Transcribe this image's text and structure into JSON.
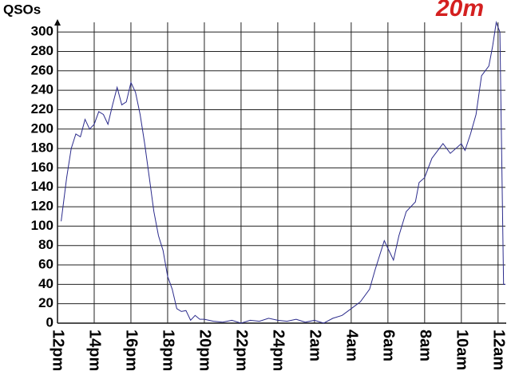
{
  "chart_data": {
    "type": "line",
    "title": "20m",
    "y_label": "QSOs",
    "x": [
      0.2,
      0.5,
      0.75,
      1,
      1.25,
      1.5,
      1.75,
      2,
      2.25,
      2.5,
      2.75,
      3,
      3.25,
      3.5,
      3.75,
      4,
      4.25,
      4.5,
      4.75,
      5,
      5.25,
      5.5,
      5.75,
      6,
      6.25,
      6.5,
      6.75,
      7,
      7.25,
      7.5,
      7.75,
      8,
      8.5,
      9,
      9.5,
      10,
      10.5,
      11,
      11.5,
      12,
      12.5,
      13,
      13.5,
      14,
      14.5,
      15,
      15.5,
      16,
      16.5,
      17,
      17.3,
      17.8,
      18.3,
      18.6,
      19,
      19.5,
      19.7,
      20,
      20.4,
      21,
      21.4,
      22,
      22.2,
      22.5,
      22.8,
      23.1,
      23.5,
      23.7,
      23.9,
      24.1,
      24.3,
      24.4
    ],
    "series": [
      {
        "color": "#2b2b8c",
        "values": [
          105,
          150,
          180,
          195,
          192,
          210,
          200,
          205,
          218,
          215,
          205,
          225,
          243,
          225,
          228,
          248,
          238,
          215,
          185,
          150,
          115,
          90,
          75,
          48,
          35,
          15,
          12,
          13,
          3,
          8,
          4,
          4,
          2,
          1,
          3,
          0,
          3,
          2,
          5,
          3,
          2,
          4,
          1,
          3,
          0,
          5,
          8,
          15,
          22,
          35,
          55,
          85,
          65,
          90,
          115,
          125,
          145,
          150,
          170,
          185,
          175,
          185,
          178,
          195,
          215,
          255,
          265,
          285,
          310,
          300,
          40,
          40
        ]
      }
    ],
    "xlim": [
      0,
      24.4
    ],
    "ylim": [
      0,
      310
    ],
    "xticks": [
      {
        "value": 0,
        "label": "12pm"
      },
      {
        "value": 2,
        "label": "14pm"
      },
      {
        "value": 4,
        "label": "16pm"
      },
      {
        "value": 6,
        "label": "18pm"
      },
      {
        "value": 8,
        "label": "20pm"
      },
      {
        "value": 10,
        "label": "22pm"
      },
      {
        "value": 12,
        "label": "24pm"
      },
      {
        "value": 14,
        "label": "2am"
      },
      {
        "value": 16,
        "label": "4am"
      },
      {
        "value": 18,
        "label": "6am"
      },
      {
        "value": 20,
        "label": "8am"
      },
      {
        "value": 22,
        "label": "10am"
      },
      {
        "value": 24,
        "label": "12am"
      }
    ],
    "yticks": [
      0,
      20,
      40,
      60,
      80,
      100,
      120,
      140,
      160,
      180,
      200,
      220,
      240,
      260,
      280,
      300
    ],
    "title_color": "#d42020",
    "grid": true
  }
}
